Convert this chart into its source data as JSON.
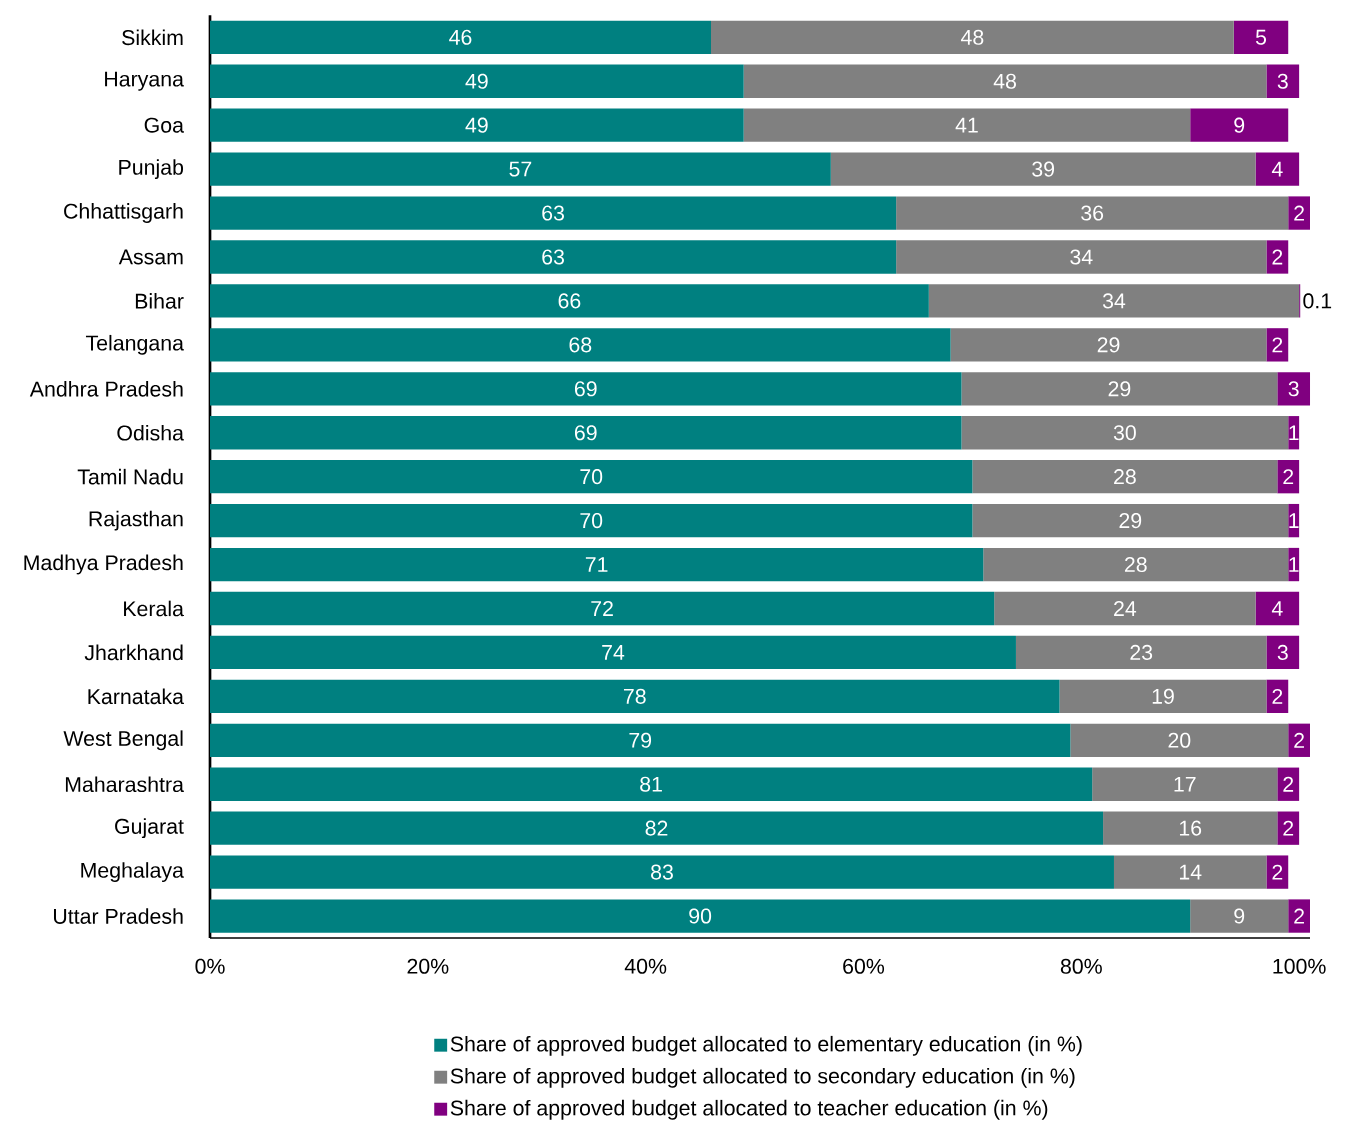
{
  "chart_data": {
    "type": "bar",
    "orientation": "horizontal",
    "stacked": true,
    "data_labels": true,
    "legend": "bottom",
    "grid": false,
    "categories": [
      "Sikkim",
      "Haryana",
      "Goa",
      "Punjab",
      "Chhattisgarh",
      "Assam",
      "Bihar",
      "Telangana",
      "Andhra Pradesh",
      "Odisha",
      "Tamil Nadu",
      "Rajasthan",
      "Madhya Pradesh",
      "Kerala",
      "Jharkhand",
      "Karnataka",
      "West Bengal",
      "Maharashtra",
      "Gujarat",
      "Meghalaya",
      "Uttar Pradesh"
    ],
    "xlim": [
      0,
      101
    ],
    "xticks": [
      {
        "value": 0,
        "label": "0%"
      },
      {
        "value": 20,
        "label": "20%"
      },
      {
        "value": 40,
        "label": "40%"
      },
      {
        "value": 60,
        "label": "60%"
      },
      {
        "value": 80,
        "label": "80%"
      },
      {
        "value": 100,
        "label": "100%"
      }
    ],
    "series": [
      {
        "name": "Share of approved budget allocated to elementary education (in %)",
        "color": "#008080",
        "values": [
          46,
          49,
          49,
          57,
          63,
          63,
          66,
          68,
          69,
          69,
          70,
          70,
          71,
          72,
          74,
          78,
          79,
          81,
          82,
          83,
          90
        ]
      },
      {
        "name": "Share of approved budget allocated to secondary education (in %)",
        "color": "#808080",
        "values": [
          48,
          48,
          41,
          39,
          36,
          34,
          34,
          29,
          29,
          30,
          28,
          29,
          28,
          24,
          23,
          19,
          20,
          17,
          16,
          14,
          9
        ]
      },
      {
        "name": "Share of approved budget allocated to teacher education (in %)",
        "color": "#800080",
        "values": [
          5,
          3,
          9,
          4,
          2,
          2,
          0.1,
          2,
          3,
          1,
          2,
          1,
          1,
          4,
          3,
          2,
          2,
          2,
          2,
          2,
          2
        ]
      }
    ]
  }
}
